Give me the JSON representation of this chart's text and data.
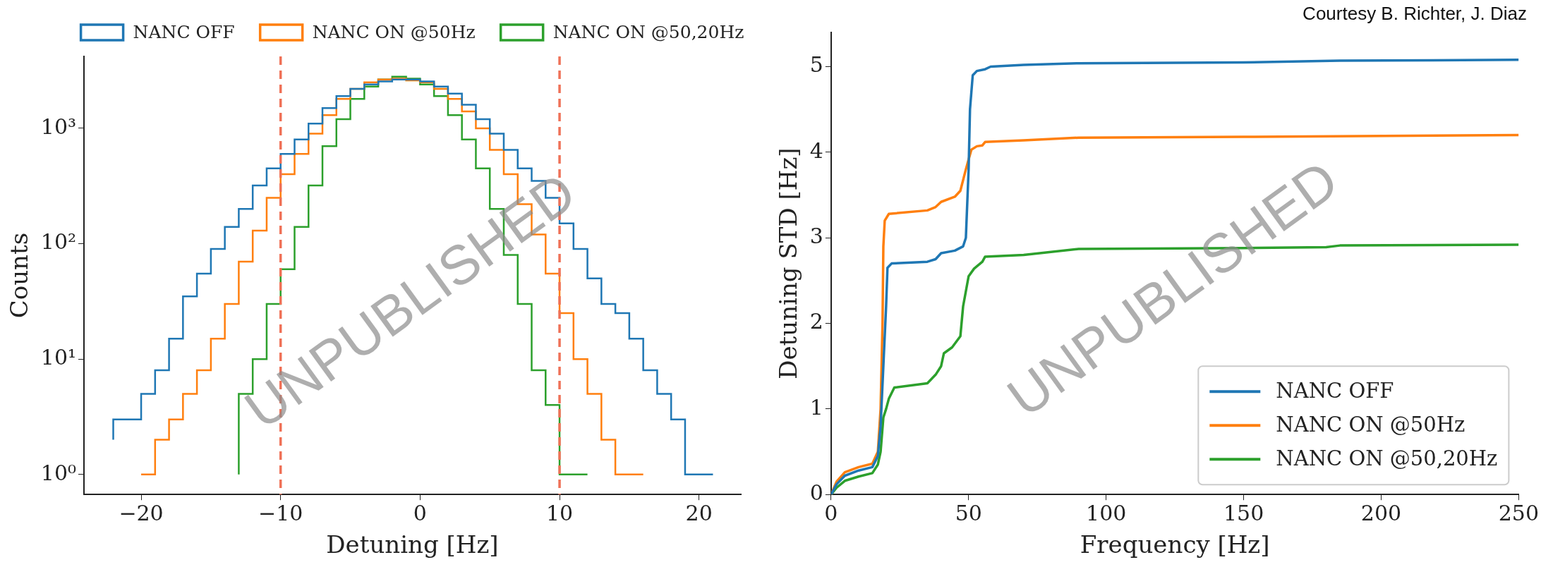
{
  "chart_data": [
    {
      "type": "step",
      "xlabel": "Detuning [Hz]",
      "ylabel": "Counts",
      "log": "y",
      "legend": "top",
      "grid": false,
      "xlim": [
        -24.1,
        23
      ],
      "xticks": [
        {
          "value": -20,
          "label": "−20"
        },
        {
          "value": -10,
          "label": "−10"
        },
        0,
        10,
        20
      ],
      "ylim": [
        0.67,
        4200
      ],
      "yticks": [
        {
          "value": 1,
          "label": "10⁰"
        },
        {
          "value": 10,
          "label": "10¹"
        },
        {
          "value": 100,
          "label": "10²"
        },
        {
          "value": 1000,
          "label": "10³"
        }
      ],
      "series": [
        {
          "name": "NANC OFF",
          "color": "#1f77b4",
          "x": [
            -22,
            -21,
            -20,
            -19,
            -18,
            -17,
            -16,
            -15,
            -14,
            -13,
            -12,
            -11,
            -10,
            -9,
            -8,
            -7,
            -6,
            -5,
            -4,
            -3,
            -2,
            -1,
            0,
            1,
            2,
            3,
            4,
            5,
            6,
            7,
            8,
            9,
            10,
            11,
            12,
            13,
            14,
            15,
            16,
            17,
            18,
            19,
            20,
            21
          ],
          "values": [
            2,
            3,
            3,
            5,
            8,
            15,
            35,
            55,
            90,
            140,
            200,
            320,
            450,
            600,
            800,
            1100,
            1500,
            1900,
            2200,
            2400,
            2550,
            2650,
            2650,
            2550,
            2300,
            2000,
            1600,
            1200,
            900,
            650,
            450,
            350,
            250,
            150,
            90,
            50,
            30,
            25,
            15,
            8,
            5,
            3,
            1,
            1
          ]
        },
        {
          "name": "NANC ON @50Hz",
          "color": "#ff7f0e",
          "x": [
            -20,
            -19,
            -18,
            -17,
            -16,
            -15,
            -14,
            -13,
            -12,
            -11,
            -10,
            -9,
            -8,
            -7,
            -6,
            -5,
            -4,
            -3,
            -2,
            -1,
            0,
            1,
            2,
            3,
            4,
            5,
            6,
            7,
            8,
            9,
            10,
            11,
            12,
            13,
            14,
            15,
            16
          ],
          "values": [
            1,
            1,
            2,
            3,
            5,
            8,
            15,
            30,
            70,
            130,
            250,
            400,
            600,
            900,
            1300,
            1800,
            2200,
            2500,
            2650,
            2700,
            2600,
            2500,
            2200,
            1800,
            1400,
            1000,
            650,
            400,
            220,
            120,
            55,
            25,
            10,
            5,
            2,
            1,
            1
          ]
        },
        {
          "name": "NANC ON @50,20Hz",
          "color": "#2ca02c",
          "x": [
            -13,
            -12,
            -11,
            -10,
            -9,
            -8,
            -7,
            -6,
            -5,
            -4,
            -3,
            -2,
            -1,
            0,
            1,
            2,
            3,
            4,
            5,
            6,
            7,
            8,
            9,
            10,
            11,
            12
          ],
          "values": [
            1,
            5,
            10,
            30,
            60,
            140,
            320,
            700,
            1200,
            1800,
            2300,
            2650,
            2800,
            2700,
            2400,
            1900,
            1300,
            800,
            450,
            200,
            80,
            30,
            8,
            4,
            1,
            1
          ]
        }
      ],
      "ref_lines": [
        {
          "axis": "x",
          "value": -10,
          "color": "#ef7157",
          "line_style": "dashed"
        },
        {
          "axis": "x",
          "value": 10,
          "color": "#ef7157",
          "line_style": "dashed"
        }
      ],
      "annotations": [
        "UNPUBLISHED"
      ]
    },
    {
      "type": "line",
      "xlabel": "Frequency [Hz]",
      "ylabel": "Detuning STD [Hz]",
      "legend": "bottom right",
      "grid": false,
      "marker": "none",
      "line_style": "solid",
      "xlim": [
        0,
        250
      ],
      "xticks": [
        0,
        50,
        100,
        150,
        200,
        250
      ],
      "ylim": [
        0,
        5.4
      ],
      "yticks": [
        0,
        1,
        2,
        3,
        4,
        5
      ],
      "series": [
        {
          "name": "NANC OFF",
          "color": "#1f77b4",
          "x": [
            0,
            2,
            5,
            10,
            15,
            17,
            18,
            19,
            20,
            20.5,
            22,
            35,
            38,
            40,
            45,
            48,
            49,
            50,
            50.5,
            51.5,
            53,
            56,
            58,
            70,
            90,
            150,
            185,
            250
          ],
          "values": [
            0,
            0.12,
            0.22,
            0.28,
            0.32,
            0.45,
            0.8,
            1.5,
            2.2,
            2.65,
            2.7,
            2.72,
            2.75,
            2.82,
            2.85,
            2.9,
            3.0,
            3.8,
            4.5,
            4.9,
            4.95,
            4.97,
            5.0,
            5.02,
            5.04,
            5.05,
            5.07,
            5.08
          ]
        },
        {
          "name": "NANC ON @50Hz",
          "color": "#ff7f0e",
          "x": [
            0,
            2,
            5,
            10,
            15,
            17,
            18,
            18.7,
            19,
            19.5,
            21,
            35,
            38,
            40,
            45,
            47,
            49,
            51,
            53,
            55,
            56,
            70,
            90,
            150,
            250
          ],
          "values": [
            0,
            0.15,
            0.26,
            0.32,
            0.36,
            0.5,
            1.0,
            2.0,
            2.9,
            3.2,
            3.28,
            3.32,
            3.36,
            3.42,
            3.48,
            3.55,
            3.8,
            4.03,
            4.07,
            4.08,
            4.12,
            4.14,
            4.17,
            4.18,
            4.2
          ]
        },
        {
          "name": "NANC ON @50,20Hz",
          "color": "#2ca02c",
          "x": [
            0,
            2,
            5,
            10,
            15,
            17,
            18,
            19,
            20,
            21,
            23,
            35,
            38,
            40,
            41,
            44,
            47,
            48,
            50,
            52,
            55,
            56,
            70,
            90,
            150,
            180,
            185,
            250
          ],
          "values": [
            0,
            0.08,
            0.16,
            0.21,
            0.25,
            0.35,
            0.5,
            0.9,
            1.0,
            1.12,
            1.25,
            1.3,
            1.4,
            1.5,
            1.65,
            1.72,
            1.85,
            2.2,
            2.55,
            2.64,
            2.72,
            2.78,
            2.8,
            2.87,
            2.88,
            2.89,
            2.91,
            2.92
          ]
        }
      ],
      "annotations": [
        "Courtesy B. Richter, J. Diaz",
        "UNPUBLISHED"
      ]
    }
  ]
}
